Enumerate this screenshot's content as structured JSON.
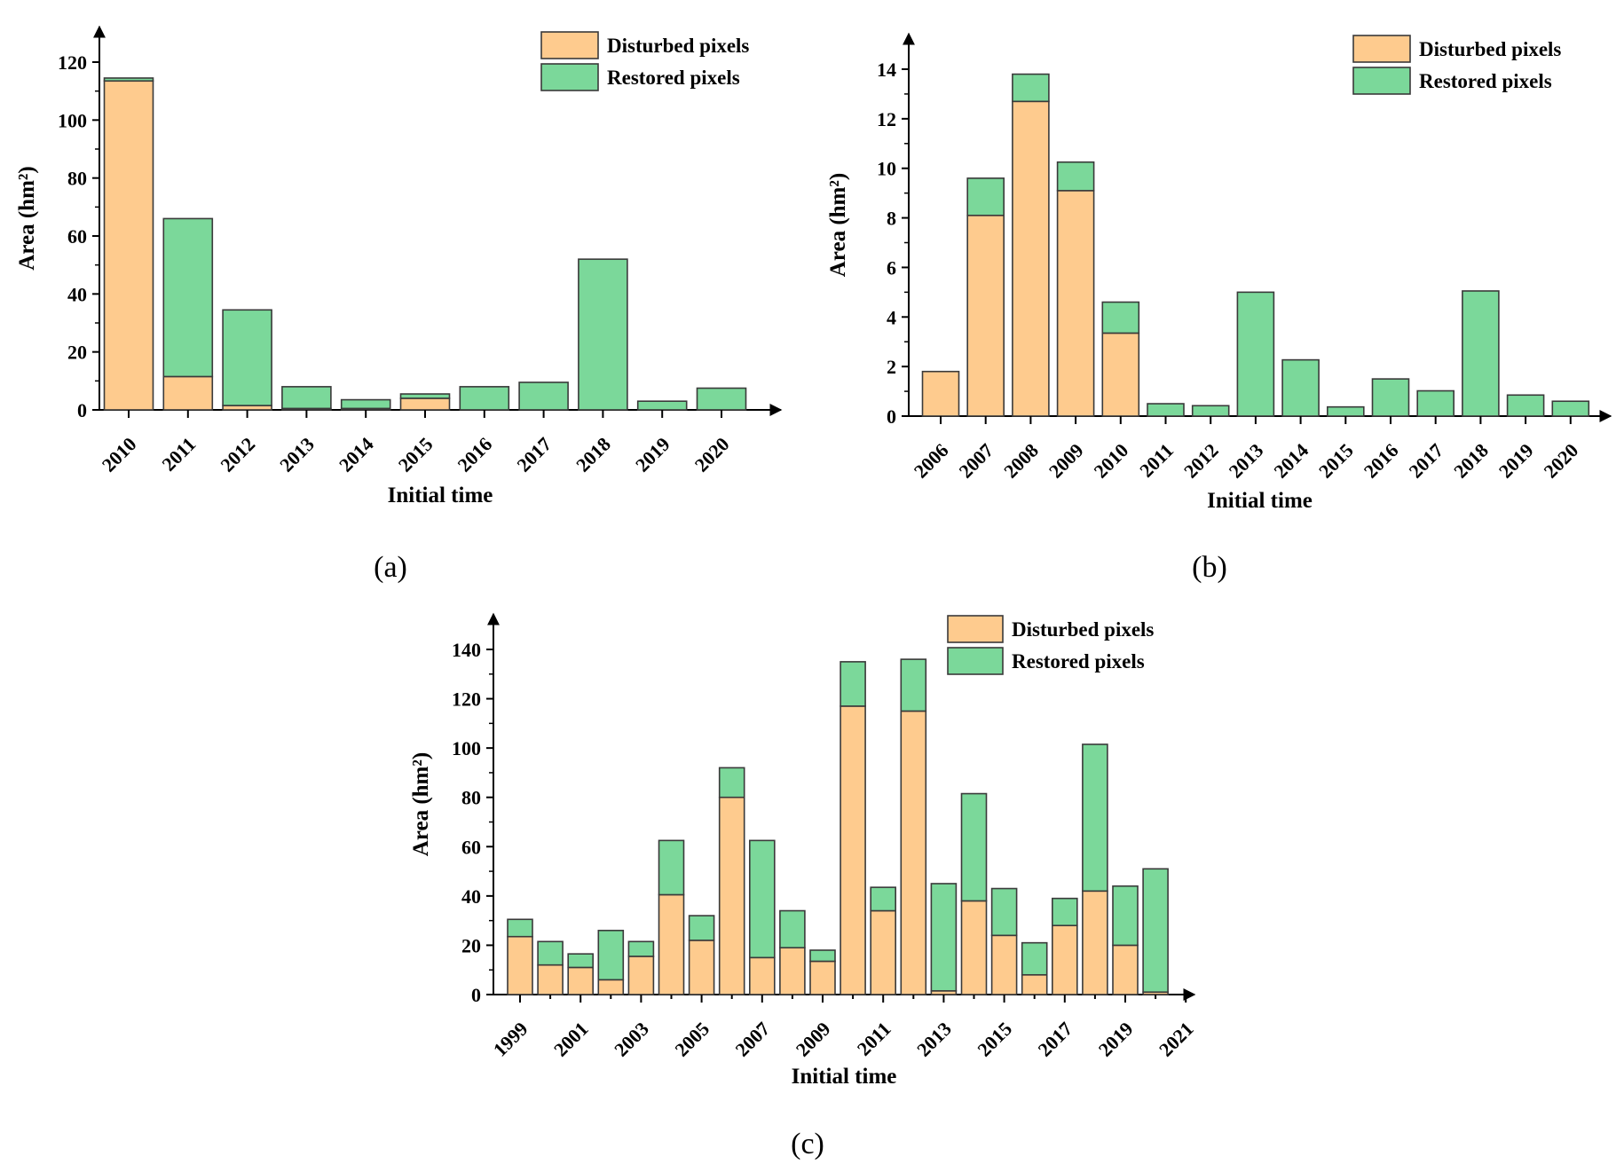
{
  "colors": {
    "disturbed": "#FECB8E",
    "restored": "#7BD89A",
    "stroke": "#3a3a3a"
  },
  "chart_data": [
    {
      "panel": "(a)",
      "panel_letter": "a",
      "type": "bar",
      "stacked": true,
      "xlabel": "Initial time",
      "ylabel": "Area (hm²)",
      "ylim": [
        0,
        120
      ],
      "yticks": [
        0,
        20,
        40,
        60,
        80,
        100,
        120
      ],
      "categories": [
        "2010",
        "2011",
        "2012",
        "2013",
        "2014",
        "2015",
        "2016",
        "2017",
        "2018",
        "2019",
        "2020"
      ],
      "legend_position": "top-right",
      "series": [
        {
          "name": "Disturbed pixels",
          "values": [
            113.5,
            11.5,
            1.5,
            0.5,
            0.5,
            4,
            0,
            0,
            0,
            0,
            0
          ]
        },
        {
          "name": "Restored pixels",
          "values": [
            1,
            54.5,
            33,
            7.5,
            3,
            1.5,
            8,
            9.5,
            52,
            3,
            7.5
          ]
        }
      ]
    },
    {
      "panel": "(b)",
      "panel_letter": "b",
      "type": "bar",
      "stacked": true,
      "xlabel": "Initial time",
      "ylabel": "Area (hm²)",
      "ylim": [
        0,
        14
      ],
      "yticks": [
        0,
        2,
        4,
        6,
        8,
        10,
        12,
        14
      ],
      "categories": [
        "2006",
        "2007",
        "2008",
        "2009",
        "2010",
        "2011",
        "2012",
        "2013",
        "2014",
        "2015",
        "2016",
        "2017",
        "2018",
        "2019",
        "2020"
      ],
      "legend_position": "top-right",
      "series": [
        {
          "name": "Disturbed pixels",
          "values": [
            1.8,
            8.1,
            12.7,
            9.1,
            3.35,
            0,
            0,
            0,
            0,
            0,
            0,
            0,
            0,
            0,
            0
          ]
        },
        {
          "name": "Restored pixels",
          "values": [
            0,
            1.5,
            1.1,
            1.15,
            1.25,
            0.5,
            0.42,
            5.0,
            2.27,
            0.37,
            1.5,
            1.02,
            5.05,
            0.85,
            0.6
          ]
        }
      ]
    },
    {
      "panel": "(c)",
      "panel_letter": "c",
      "type": "bar",
      "stacked": true,
      "xlabel": "Initial time",
      "ylabel": "Area (hm²)",
      "ylim": [
        0,
        140
      ],
      "yticks": [
        0,
        20,
        40,
        60,
        80,
        100,
        120,
        140
      ],
      "categories": [
        "1999",
        "2000",
        "2001",
        "2002",
        "2003",
        "2004",
        "2005",
        "2006",
        "2007",
        "2008",
        "2009",
        "2010",
        "2011",
        "2012",
        "2013",
        "2014",
        "2015",
        "2016",
        "2017",
        "2018",
        "2019",
        "2020"
      ],
      "xtick_labels": [
        "1999",
        "2001",
        "2003",
        "2005",
        "2007",
        "2009",
        "2011",
        "2013",
        "2015",
        "2017",
        "2019",
        "2021"
      ],
      "legend_position": "top-right",
      "series": [
        {
          "name": "Disturbed pixels",
          "values": [
            23.5,
            12,
            11,
            6,
            15.5,
            40.5,
            22,
            80,
            15,
            19,
            13.5,
            117,
            34,
            115,
            1.5,
            38,
            24,
            8,
            28,
            42,
            20,
            1
          ]
        },
        {
          "name": "Restored pixels",
          "values": [
            7,
            9.5,
            5.5,
            20,
            6,
            22,
            10,
            12,
            47.5,
            15,
            4.5,
            18,
            9.5,
            21,
            43.5,
            43.5,
            19,
            13,
            11,
            59.5,
            24,
            50
          ]
        }
      ]
    }
  ]
}
